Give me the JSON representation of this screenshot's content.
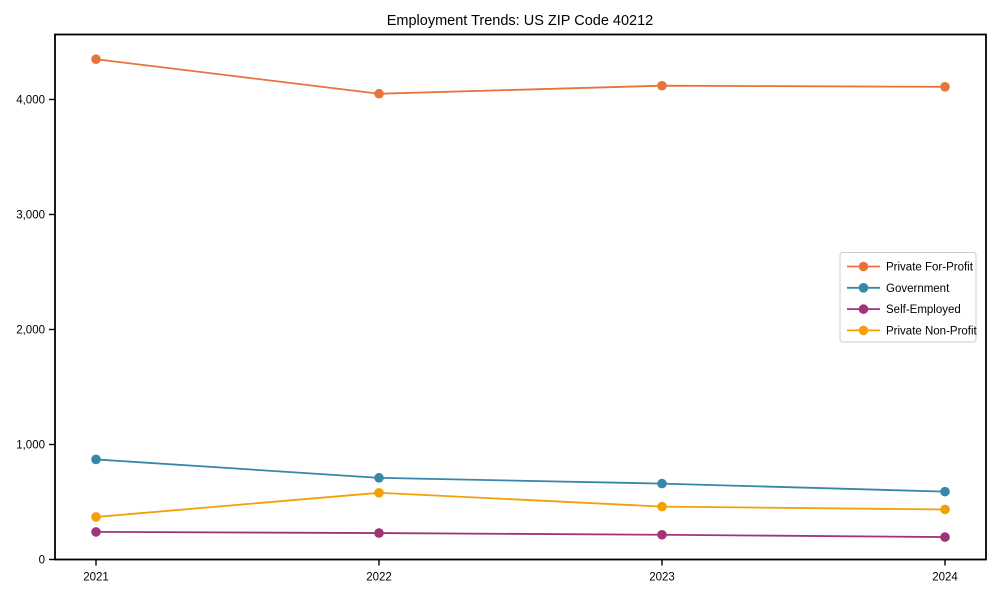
{
  "chart_data": {
    "type": "line",
    "title": "Employment Trends: US ZIP Code 40212",
    "x": [
      2021,
      2022,
      2023,
      2024
    ],
    "x_tick_labels": [
      "2021",
      "2022",
      "2023",
      "2024"
    ],
    "series": [
      {
        "name": "Private For-Profit",
        "color": "#E8743B",
        "values": [
          4350,
          4050,
          4120,
          4110
        ]
      },
      {
        "name": "Government",
        "color": "#3787A8",
        "values": [
          870,
          710,
          660,
          590
        ]
      },
      {
        "name": "Self-Employed",
        "color": "#A13478",
        "values": [
          240,
          230,
          215,
          195
        ]
      },
      {
        "name": "Private Non-Profit",
        "color": "#F2A104",
        "values": [
          370,
          580,
          460,
          435
        ]
      }
    ],
    "ylim": [
      0,
      4565
    ],
    "yticks": [
      0,
      1000,
      2000,
      3000,
      4000
    ],
    "ytick_labels": [
      "0",
      "1,000",
      "2,000",
      "3,000",
      "4,000"
    ],
    "xlabel": "",
    "ylabel": "",
    "grid": false,
    "legend_position": "center-right",
    "legend_entries": [
      "Private For-Profit",
      "Government",
      "Self-Employed",
      "Private Non-Profit"
    ],
    "axis_color": "#000000",
    "background_color": "#ffffff",
    "legend_border_color": "#cccccc"
  }
}
